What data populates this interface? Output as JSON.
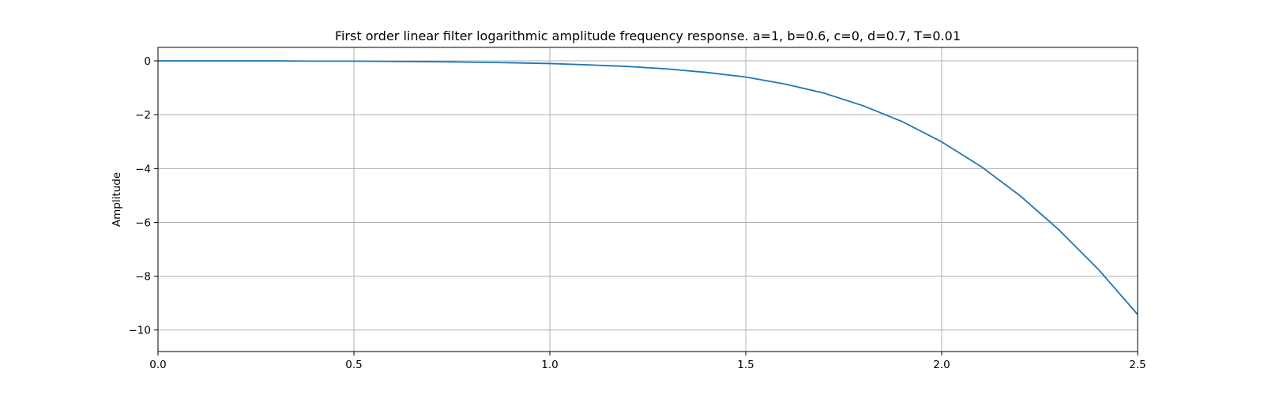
{
  "chart_data": {
    "type": "line",
    "title": "First order linear filter logarithmic amplitude frequency response. a=1, b=0.6, c=0, d=0.7, T=0.01",
    "xlabel": "",
    "ylabel": "Amplitude",
    "xlim": [
      0.0,
      2.5
    ],
    "ylim": [
      -10.8,
      0.5
    ],
    "grid": true,
    "x_ticks": [
      "0.0",
      "0.5",
      "1.0",
      "1.5",
      "2.0",
      "2.5"
    ],
    "x_tick_values": [
      0.0,
      0.5,
      1.0,
      1.5,
      2.0,
      2.5
    ],
    "y_ticks": [
      "0",
      "−2",
      "−4",
      "−6",
      "−8",
      "−10"
    ],
    "y_tick_values": [
      0,
      -2,
      -4,
      -6,
      -8,
      -10
    ],
    "series": [
      {
        "color": "#1f77b4",
        "x": [
          0.0,
          0.1,
          0.2,
          0.3,
          0.4,
          0.5,
          0.6,
          0.7,
          0.8,
          0.9,
          1.0,
          1.1,
          1.2,
          1.3,
          1.4,
          1.5,
          1.6,
          1.7,
          1.8,
          1.9,
          2.0,
          2.1,
          2.2,
          2.3,
          2.4,
          2.5
        ],
        "y": [
          0.0,
          0.0,
          0.0,
          0.0,
          -0.01,
          -0.01,
          -0.02,
          -0.03,
          -0.05,
          -0.07,
          -0.1,
          -0.15,
          -0.21,
          -0.3,
          -0.43,
          -0.6,
          -0.86,
          -1.2,
          -1.67,
          -2.26,
          -3.01,
          -3.92,
          -5.01,
          -6.29,
          -7.75,
          -9.42
        ]
      }
    ]
  },
  "colors": {
    "line": "#1f77b4",
    "grid": "#b0b0b0",
    "axes": "#000000",
    "background": "#ffffff"
  }
}
